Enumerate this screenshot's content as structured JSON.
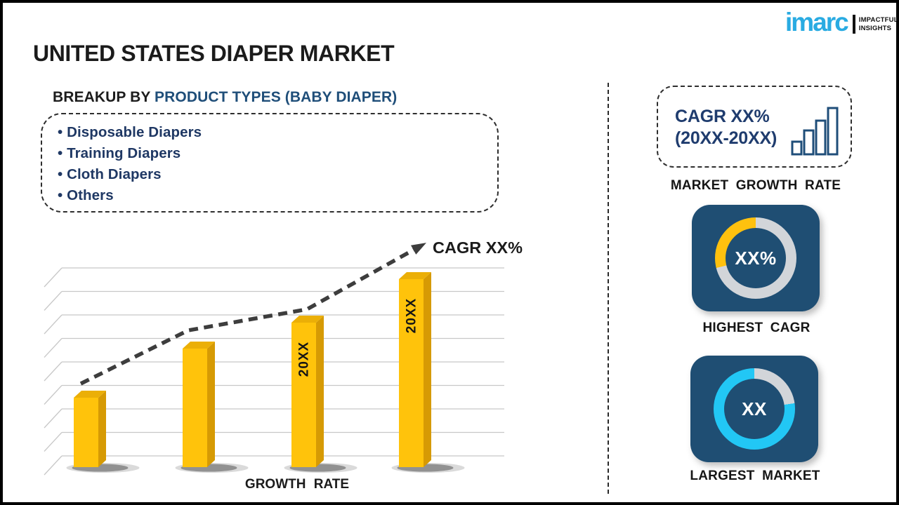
{
  "brand": {
    "wordmark": "imarc",
    "tagline_line1": "IMPACTFUL",
    "tagline_line2": "INSIGHTS",
    "wordmark_color": "#29ABE2"
  },
  "header": {
    "title": "UNITED STATES DIAPER MARKET",
    "subtitle_prefix": "BREAKUP BY ",
    "subtitle_highlight": "PRODUCT TYPES (BABY DIAPER)"
  },
  "breakup_box": {
    "items": [
      "Disposable Diapers",
      "Training Diapers",
      "Cloth Diapers",
      "Others"
    ]
  },
  "right_panel": {
    "cagr_card": {
      "line1": "CAGR XX%",
      "line2": "(20XX-20XX)"
    },
    "market_growth_label": "MARKET GROWTH RATE"
  },
  "colors": {
    "navy_text": "#1F3864",
    "accent_blue": "#1F4E79",
    "tile_blue": "#1F4E73",
    "ring_gray": "#D2D5D9",
    "ring_yellow": "#FFC10E",
    "ring_cyan": "#22C7F5",
    "trend_gray": "#3D3D3D",
    "grid_gray": "#C8C8C8"
  },
  "chart_data": [
    {
      "id": "growth-rate-bar-chart",
      "type": "bar",
      "title": "GROWTH RATE",
      "categories": [
        "",
        "",
        "20XX",
        "20XX"
      ],
      "bar_labels": [
        "",
        "",
        "20XX",
        "20XX"
      ],
      "values_pct_of_max": [
        37,
        63,
        77,
        100
      ],
      "note": "values are placeholders in source image; heights estimated relative to tallest bar",
      "grid": true,
      "trend": {
        "style": "dashed-arrow",
        "label": "CAGR XX%"
      },
      "colors": {
        "front": "#FFC30B",
        "side": "#D69A04",
        "top": "#EBAF07"
      }
    },
    {
      "id": "highest-cagr-donut",
      "type": "pie",
      "label": "HIGHEST CAGR",
      "center_text": "XX%",
      "slices": [
        {
          "name": "remainder",
          "color": "#D2D5D9",
          "from_deg": 0,
          "to_deg": 256,
          "pct": 71
        },
        {
          "name": "cagr-highlight",
          "color": "#FFC10E",
          "from_deg": 256,
          "to_deg": 360,
          "pct": 29
        }
      ]
    },
    {
      "id": "largest-market-donut",
      "type": "pie",
      "label": "LARGEST MARKET",
      "center_text": "XX",
      "slices": [
        {
          "name": "highlight-share",
          "color": "#D2D5D9",
          "from_deg": 0,
          "to_deg": 82,
          "pct": 23
        },
        {
          "name": "market-share",
          "color": "#22C7F5",
          "from_deg": 82,
          "to_deg": 360,
          "pct": 77
        }
      ]
    }
  ]
}
